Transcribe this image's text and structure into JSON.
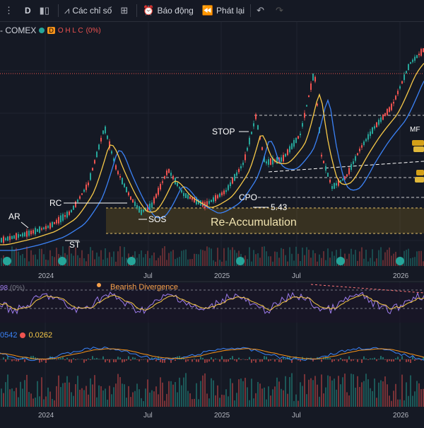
{
  "toolbar": {
    "interval": "D",
    "indicators_label": "Các chỉ số",
    "alerts_label": "Báo động",
    "replay_label": "Phát lại"
  },
  "legend": {
    "symbol": "- COMEX",
    "interval_badge": "D",
    "ohlc": "O H L C",
    "change_pct": "(0%)"
  },
  "annotations": {
    "ar": "AR",
    "rc": "RC",
    "st": "ST",
    "sos": "SOS",
    "stop": "STOP",
    "cpo": "CPO",
    "price": "5.43",
    "mf": "MF",
    "range_title": "Re-Accumulation",
    "divergence": "Bearish Divergence"
  },
  "rsi": {
    "value": "98",
    "value2": "(0%)"
  },
  "macd": {
    "v1": "0542",
    "v2": "0.0262"
  },
  "time_axis": [
    "2024",
    "Jul",
    "2025",
    "Jul",
    "2026"
  ],
  "colors": {
    "background": "#151924",
    "up": "#26a69a",
    "down": "#ef5350",
    "ema_fast": "#f7c948",
    "ema_slow": "#3b82f6",
    "rsi": "#9c7bea",
    "accent_gold": "#d4a017"
  },
  "chart_data": {
    "type": "line",
    "x": [
      "2024-01",
      "2024-04",
      "2024-07",
      "2024-10",
      "2025-01",
      "2025-04",
      "2025-07",
      "2025-10",
      "2026-01"
    ],
    "series": [
      {
        "values": [
          2.4,
          2.9,
          3.9,
          3.7,
          4.1,
          4.9,
          5.4,
          5.9,
          7.0
        ]
      }
    ],
    "xlabel": "",
    "ylabel": ""
  }
}
